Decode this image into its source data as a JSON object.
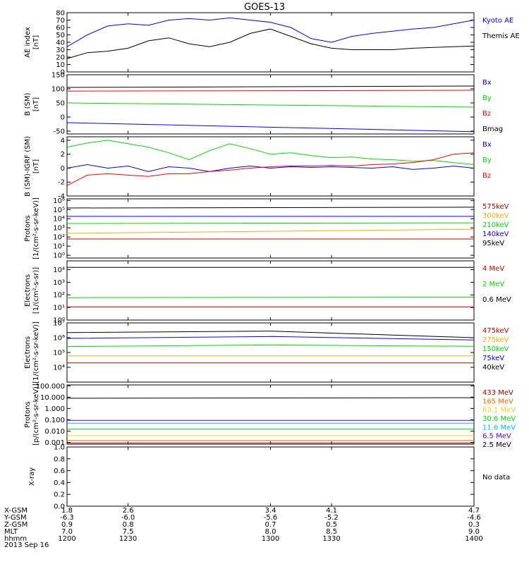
{
  "title": "GOES-13",
  "chart_data": {
    "type": "line",
    "x_ticks": [
      "1200",
      "1230",
      "1300",
      "1330",
      "1400"
    ],
    "xlim": [
      1200,
      1400
    ],
    "orbit_labels": [
      "X-GSM",
      "Y-GSM",
      "Z-GSM",
      "MLT",
      "hhmm"
    ],
    "orbit_values": [
      [
        "1.8",
        "2.6",
        "3.4",
        "4.1",
        "4.7"
      ],
      [
        "-6.3",
        "-6.0",
        "-5.6",
        "-5.2",
        "-4.6"
      ],
      [
        "0.9",
        "0.8",
        "0.7",
        "0.5",
        "0.3"
      ],
      [
        "7.0",
        "7.5",
        "8.0",
        "8.5",
        "9.0"
      ],
      [
        "1200",
        "1230",
        "1300",
        "1330",
        "1400"
      ]
    ],
    "date": "2013 Sep 16",
    "panels": [
      {
        "ylabel": [
          "AE index",
          "[nT]"
        ],
        "scale": "linear",
        "ylim": [
          0,
          80
        ],
        "ticks": [
          0,
          10,
          20,
          30,
          40,
          50,
          60,
          70,
          80
        ],
        "tick_labels": [
          "0",
          "10",
          "20",
          "30",
          "40",
          "50",
          "60",
          "70",
          "80"
        ],
        "series": [
          {
            "name": "Kyoto AE",
            "color": "#0000ff",
            "x": [
              1200,
              1210,
              1220,
              1230,
              1240,
              1250,
              1260,
              1270,
              1280,
              1290,
              1300,
              1310,
              1320,
              1330,
              1340,
              1350,
              1360,
              1370,
              1380,
              1390,
              1400
            ],
            "y": [
              34,
              50,
              62,
              65,
              63,
              70,
              72,
              70,
              73,
              70,
              67,
              60,
              45,
              40,
              48,
              52,
              55,
              58,
              60,
              65,
              70
            ]
          },
          {
            "name": "Themis AE",
            "color": "#000000",
            "x": [
              1200,
              1210,
              1220,
              1230,
              1240,
              1250,
              1260,
              1270,
              1280,
              1290,
              1300,
              1310,
              1320,
              1330,
              1340,
              1350,
              1360,
              1370,
              1380,
              1390,
              1400
            ],
            "y": [
              18,
              26,
              28,
              32,
              42,
              46,
              38,
              34,
              40,
              52,
              58,
              48,
              38,
              32,
              30,
              30,
              30,
              32,
              33,
              34,
              35
            ]
          }
        ]
      },
      {
        "ylabel": [
          "B (SM)",
          "[nT]"
        ],
        "scale": "linear",
        "ylim": [
          -60,
          150
        ],
        "ticks": [
          -50,
          0,
          50,
          100,
          150
        ],
        "tick_labels": [
          "-50",
          "0",
          "50",
          "100",
          "150"
        ],
        "series": [
          {
            "name": "Bx",
            "color": "#0000ff",
            "x": [
              1200,
              1400
            ],
            "y": [
              -20,
              -52
            ]
          },
          {
            "name": "By",
            "color": "#00dd00",
            "x": [
              1200,
              1400
            ],
            "y": [
              50,
              35
            ]
          },
          {
            "name": "Bz",
            "color": "#ff0000",
            "x": [
              1200,
              1400
            ],
            "y": [
              92,
              95
            ]
          },
          {
            "name": "Bmag",
            "color": "#000000",
            "x": [
              1200,
              1400
            ],
            "y": [
              105,
              110
            ]
          }
        ]
      },
      {
        "ylabel": [
          "B (SM)-IGRF (SM)",
          "[nT]"
        ],
        "scale": "linear",
        "ylim": [
          -4,
          4.5
        ],
        "ticks": [
          -4,
          -2,
          0,
          2,
          4
        ],
        "tick_labels": [
          "-4",
          "-2",
          "0",
          "2",
          "4"
        ],
        "series": [
          {
            "name": "Bx",
            "color": "#0000ff",
            "x": [
              1200,
              1210,
              1220,
              1230,
              1240,
              1250,
              1260,
              1270,
              1280,
              1290,
              1300,
              1310,
              1320,
              1330,
              1340,
              1350,
              1360,
              1370,
              1380,
              1390,
              1400
            ],
            "y": [
              0,
              0.5,
              0,
              0.3,
              -0.5,
              0.2,
              0,
              -0.5,
              0,
              0.3,
              0,
              0.2,
              0.1,
              0.2,
              0.1,
              0,
              0.2,
              -0.2,
              0,
              0.3,
              0
            ]
          },
          {
            "name": "By",
            "color": "#00dd00",
            "x": [
              1200,
              1210,
              1220,
              1230,
              1240,
              1250,
              1260,
              1270,
              1280,
              1290,
              1300,
              1310,
              1320,
              1330,
              1340,
              1350,
              1360,
              1370,
              1380,
              1390,
              1400
            ],
            "y": [
              3,
              3.6,
              4,
              3.5,
              3,
              2.2,
              1.2,
              2.5,
              3.5,
              2.8,
              2,
              2.2,
              1.8,
              1.5,
              1.6,
              1.3,
              1.2,
              1,
              1.1,
              0.8,
              0.5
            ]
          },
          {
            "name": "Bz",
            "color": "#ff0000",
            "x": [
              1200,
              1210,
              1220,
              1230,
              1240,
              1250,
              1260,
              1270,
              1280,
              1290,
              1300,
              1310,
              1320,
              1330,
              1340,
              1350,
              1360,
              1370,
              1380,
              1390,
              1400
            ],
            "y": [
              -2.5,
              -1,
              -0.8,
              -1,
              -1.2,
              -0.8,
              -0.8,
              -0.5,
              -0.3,
              0,
              0.2,
              0.3,
              0.3,
              0.4,
              0.3,
              0.5,
              0.6,
              0.8,
              1.2,
              2,
              2.2
            ]
          }
        ]
      },
      {
        "ylabel": [
          "Protons",
          "[1/(cm²-s-sr-keV)]"
        ],
        "scale": "log",
        "ylim": [
          0.5,
          1500000
        ],
        "ticks": [
          1,
          10,
          100,
          1000,
          10000,
          100000,
          1000000
        ],
        "tick_labels": [
          "10⁰",
          "10¹",
          "10²",
          "10³",
          "10⁴",
          "10⁵",
          "10⁶"
        ],
        "series": [
          {
            "name": "575keV",
            "color": "#cc0000",
            "x": [
              1200,
              1400
            ],
            "y": [
              60,
              60
            ]
          },
          {
            "name": "300keV",
            "color": "#ffaa00",
            "x": [
              1200,
              1400
            ],
            "y": [
              250,
              700
            ]
          },
          {
            "name": "210keV",
            "color": "#00dd00",
            "x": [
              1200,
              1400
            ],
            "y": [
              3000,
              3500
            ]
          },
          {
            "name": "140keV",
            "color": "#0000ff",
            "x": [
              1200,
              1400
            ],
            "y": [
              18000,
              18000
            ]
          },
          {
            "name": "95keV",
            "color": "#000000",
            "x": [
              1200,
              1400
            ],
            "y": [
              150000,
              180000
            ]
          }
        ]
      },
      {
        "ylabel": [
          "Electrons",
          "[1/(cm²-s-sr)]"
        ],
        "scale": "log",
        "ylim": [
          1,
          50000
        ],
        "ticks": [
          1,
          10,
          100,
          1000,
          10000
        ],
        "tick_labels": [
          "10⁰",
          "10¹",
          "10²",
          "10³",
          "10⁴"
        ],
        "series": [
          {
            "name": "4 MeV",
            "color": "#cc0000",
            "x": [
              1200,
              1400
            ],
            "y": [
              11,
              11
            ]
          },
          {
            "name": "2 MeV",
            "color": "#00dd00",
            "x": [
              1200,
              1400
            ],
            "y": [
              60,
              65
            ]
          },
          {
            "name": "0.6 MeV",
            "color": "#000000",
            "x": [
              1200,
              1400
            ],
            "y": [
              15000,
              15000
            ]
          }
        ]
      },
      {
        "ylabel": [
          "Electrons",
          "[1/(cm²-s-sr-keV)]"
        ],
        "scale": "log",
        "ylim": [
          1000,
          10000000
        ],
        "ticks": [
          10000,
          100000,
          1000000,
          10000000
        ],
        "tick_labels": [
          "10⁴",
          "10⁵",
          "10⁶",
          "10⁷"
        ],
        "series": [
          {
            "name": "475keV",
            "color": "#cc0000",
            "x": [
              1200,
              1400
            ],
            "y": [
              20000,
              20000
            ]
          },
          {
            "name": "275keV",
            "color": "#ffaa00",
            "x": [
              1200,
              1400
            ],
            "y": [
              60000,
              60000
            ]
          },
          {
            "name": "150keV",
            "color": "#00dd00",
            "x": [
              1200,
              1300,
              1400
            ],
            "y": [
              250000,
              320000,
              260000
            ]
          },
          {
            "name": "75keV",
            "color": "#0000ff",
            "x": [
              1200,
              1300,
              1400
            ],
            "y": [
              900000,
              1200000,
              700000
            ]
          },
          {
            "name": "40keV",
            "color": "#000000",
            "x": [
              1200,
              1300,
              1400
            ],
            "y": [
              2200000,
              2800000,
              1000000
            ]
          }
        ]
      },
      {
        "ylabel": [
          "Protons",
          "[p/(cm²-s-sr-keV)]"
        ],
        "scale": "log",
        "ylim": [
          0.0007,
          120
        ],
        "ticks": [
          0.001,
          0.01,
          0.1,
          1,
          10,
          100
        ],
        "tick_labels": [
          "0.001",
          "0.010",
          "0.100",
          "1.000",
          "10.000",
          "100.000"
        ],
        "series": [
          {
            "name": "433 MeV",
            "color": "#aa0000",
            "x": [
              1200,
              1400
            ],
            "y": [
              0.0009,
              0.0009
            ]
          },
          {
            "name": "165 MeV",
            "color": "#ff6600",
            "x": [
              1200,
              1400
            ],
            "y": [
              0.0015,
              0.0015
            ]
          },
          {
            "name": "63.1 MeV",
            "color": "#dddd00",
            "x": [
              1200,
              1400
            ],
            "y": [
              0.004,
              0.004
            ]
          },
          {
            "name": "30.6 MeV",
            "color": "#00dd00",
            "x": [
              1200,
              1400
            ],
            "y": [
              0.015,
              0.015
            ]
          },
          {
            "name": "11.6 MeV",
            "color": "#00bbff",
            "x": [
              1200,
              1400
            ],
            "y": [
              0.05,
              0.05
            ]
          },
          {
            "name": "6.5 MeV",
            "color": "#5500cc",
            "x": [
              1200,
              1400
            ],
            "y": [
              0.09,
              0.09
            ]
          },
          {
            "name": "2.5 MeV",
            "color": "#000000",
            "x": [
              1200,
              1400
            ],
            "y": [
              8,
              9
            ]
          }
        ]
      },
      {
        "ylabel": [
          "X-ray"
        ],
        "scale": "linear",
        "ylim": [
          0,
          1
        ],
        "ticks": [
          0,
          0.2,
          0.4,
          0.6,
          0.8,
          1
        ],
        "tick_labels": [
          "0.0",
          "0.2",
          "0.4",
          "0.6",
          "0.8",
          "1.0"
        ],
        "series": [],
        "note": "No data"
      }
    ]
  }
}
